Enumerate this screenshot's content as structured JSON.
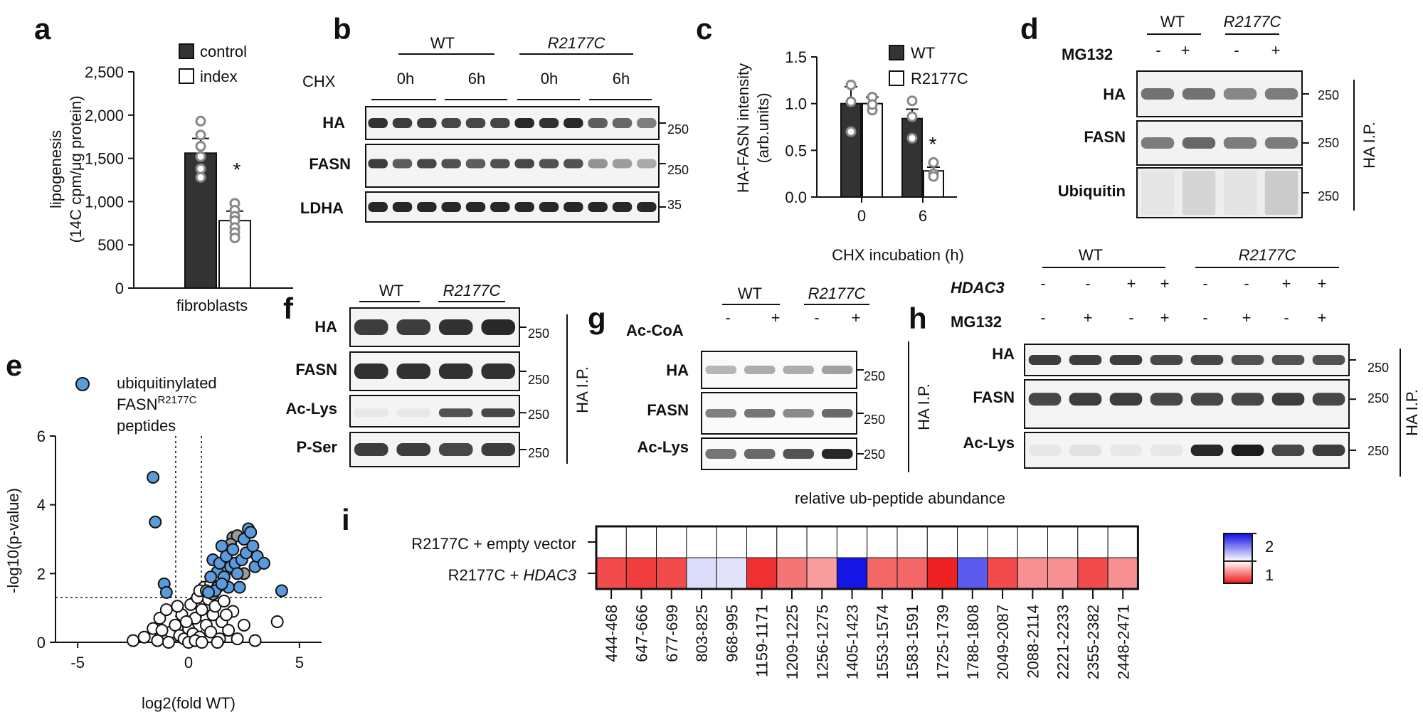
{
  "panels": {
    "a": {
      "letter": "a",
      "legend": [
        "control",
        "index"
      ],
      "ylabel_line1": "lipogenesis",
      "ylabel_line2": "(14C cpm/μg protein)",
      "yticks": [
        "2,500",
        "2,000",
        "1,500",
        "1,000",
        "500",
        "0"
      ],
      "xlabel": "fibroblasts",
      "star": "*"
    },
    "b": {
      "letter": "b",
      "groups": [
        "WT",
        "R2177C"
      ],
      "treatment": "CHX",
      "times": [
        "0h",
        "6h",
        "0h",
        "6h"
      ],
      "rows": [
        "HA",
        "FASN",
        "LDHA"
      ],
      "mw": [
        "250",
        "250",
        "35"
      ]
    },
    "c": {
      "letter": "c",
      "legend": [
        "WT",
        "R2177C"
      ],
      "ylabel_line1": "HA-FASN intensity",
      "ylabel_line2": "(arb.units)",
      "yticks": [
        "1.5",
        "1.0",
        "0.5",
        "0.0"
      ],
      "xticks": [
        "0",
        "6"
      ],
      "xlabel": "CHX incubation (h)",
      "star": "*"
    },
    "d": {
      "letter": "d",
      "groups": [
        "WT",
        "R2177C"
      ],
      "treatment": "MG132",
      "signs": [
        "-",
        "+",
        "-",
        "+"
      ],
      "rows": [
        "HA",
        "FASN",
        "Ubiquitin"
      ],
      "mw": [
        "250",
        "250",
        "250"
      ],
      "side": "HA I.P."
    },
    "e": {
      "letter": "e",
      "legend_line1": "ubiquitinylated",
      "legend_line2": "FASN",
      "legend_sup": "R2177C",
      "legend_line3": "peptides",
      "ylabel": "-log10(p-value)",
      "xlabel": "log2(fold  WT)",
      "yticks": [
        "6",
        "4",
        "2",
        "0"
      ],
      "xticks": [
        "-5",
        "0",
        "5"
      ]
    },
    "f": {
      "letter": "f",
      "groups": [
        "WT",
        "R2177C"
      ],
      "rows": [
        "HA",
        "FASN",
        "Ac-Lys",
        "P-Ser"
      ],
      "mw": [
        "250",
        "250",
        "250",
        "250"
      ],
      "side": "HA I.P."
    },
    "g": {
      "letter": "g",
      "groups": [
        "WT",
        "R2177C"
      ],
      "treatment": "Ac-CoA",
      "signs": [
        "-",
        "+",
        "-",
        "+"
      ],
      "rows": [
        "HA",
        "FASN",
        "Ac-Lys"
      ],
      "mw": [
        "250",
        "250",
        "250"
      ],
      "side": "HA I.P."
    },
    "h": {
      "letter": "h",
      "groups": [
        "WT",
        "R2177C"
      ],
      "treatments": [
        "HDAC3",
        "MG132"
      ],
      "signs_hdac3": [
        "-",
        "-",
        "+",
        "+",
        "-",
        "-",
        "+",
        "+"
      ],
      "signs_mg132": [
        "-",
        "+",
        "-",
        "+",
        "-",
        "+",
        "-",
        "+"
      ],
      "rows": [
        "HA",
        "FASN",
        "Ac-Lys"
      ],
      "mw": [
        "250",
        "250",
        "250"
      ],
      "side": "HA I.P."
    },
    "i": {
      "letter": "i",
      "title": "relative ub-peptide abundance",
      "rows": [
        "R2177C + empty vector",
        "R2177C + "
      ],
      "row2_italic": "HDAC3",
      "colorbar_ticks": [
        "2",
        "1"
      ]
    }
  },
  "chart_data": [
    {
      "panel": "a",
      "type": "bar",
      "categories": [
        "control",
        "index"
      ],
      "values": [
        1560,
        780
      ],
      "errors": [
        170,
        110
      ],
      "points": [
        [
          1930,
          1770,
          1640,
          1520,
          1380,
          1280
        ],
        [
          980,
          900,
          830,
          780,
          700,
          640,
          580
        ]
      ],
      "xlabel": "fibroblasts",
      "ylabel": "lipogenesis (14C cpm/μg protein)",
      "ylim": [
        0,
        2500
      ],
      "colors": [
        "#333333",
        "#ffffff"
      ]
    },
    {
      "panel": "c",
      "type": "bar",
      "categories": [
        "0",
        "6"
      ],
      "series": [
        {
          "name": "WT",
          "values": [
            1.0,
            0.84
          ],
          "errors": [
            0.18,
            0.1
          ],
          "points": [
            [
              1.2,
              1.02,
              0.7
            ],
            [
              1.03,
              0.63,
              0.86
            ]
          ]
        },
        {
          "name": "R2177C",
          "values": [
            1.0,
            0.28
          ],
          "errors": [
            0.07,
            0.04
          ],
          "points": [
            [
              1.07,
              0.93,
              0.99
            ],
            [
              0.37,
              0.25,
              0.22
            ]
          ]
        }
      ],
      "xlabel": "CHX incubation (h)",
      "ylabel": "HA-FASN intensity (arb.units)",
      "ylim": [
        0,
        1.5
      ],
      "colors": [
        "#333333",
        "#ffffff"
      ]
    },
    {
      "panel": "e",
      "type": "scatter",
      "xlabel": "log2(fold  WT)",
      "ylabel": "-log10(p-value)",
      "xlim": [
        -6,
        6
      ],
      "ylim": [
        0,
        6
      ],
      "thresholds": {
        "x": [
          -0.58,
          0.58
        ],
        "y": 1.3
      },
      "series": [
        {
          "name": "ubiquitinylated FASNR2177C peptides",
          "color": "#5b9bdc",
          "points": [
            [
              -1.6,
              4.8
            ],
            [
              -1.5,
              3.5
            ],
            [
              -1.1,
              1.7
            ],
            [
              -1.0,
              1.45
            ],
            [
              1.1,
              2.4
            ],
            [
              1.3,
              2.05
            ],
            [
              1.4,
              2.3
            ],
            [
              1.5,
              2.8
            ],
            [
              1.6,
              1.9
            ],
            [
              1.7,
              2.5
            ],
            [
              1.8,
              1.6
            ],
            [
              1.9,
              2.2
            ],
            [
              2.0,
              2.7
            ],
            [
              2.1,
              2.3
            ],
            [
              2.2,
              2.0
            ],
            [
              2.4,
              2.4
            ],
            [
              2.5,
              3.0
            ],
            [
              2.6,
              2.6
            ],
            [
              2.7,
              3.3
            ],
            [
              2.8,
              3.2
            ],
            [
              2.9,
              2.8
            ],
            [
              3.0,
              2.2
            ],
            [
              3.1,
              2.5
            ],
            [
              3.4,
              2.3
            ],
            [
              4.2,
              1.5
            ],
            [
              1.2,
              1.5
            ],
            [
              1.5,
              1.7
            ],
            [
              2.3,
              1.6
            ],
            [
              0.9,
              1.45
            ],
            [
              1.0,
              1.9
            ]
          ]
        },
        {
          "name": "",
          "color": "#9a9a9a",
          "points": [
            [
              2.0,
              3.05
            ],
            [
              2.2,
              3.1
            ],
            [
              1.9,
              2.85
            ],
            [
              1.3,
              1.6
            ],
            [
              1.7,
              2.1
            ],
            [
              2.5,
              2.0
            ],
            [
              0.8,
              1.5
            ],
            [
              1.1,
              1.4
            ]
          ]
        },
        {
          "name": "",
          "color": "#ffffff",
          "points": [
            [
              -2.5,
              0.05
            ],
            [
              -2.0,
              0.15
            ],
            [
              -1.6,
              0.4
            ],
            [
              -1.3,
              0.7
            ],
            [
              -1.0,
              0.95
            ],
            [
              -0.8,
              0.3
            ],
            [
              -0.6,
              0.5
            ],
            [
              -0.4,
              0.2
            ],
            [
              -0.3,
              0.8
            ],
            [
              -0.2,
              0.1
            ],
            [
              0.0,
              0.4
            ],
            [
              0.1,
              1.1
            ],
            [
              0.2,
              0.25
            ],
            [
              0.3,
              0.7
            ],
            [
              0.4,
              1.3
            ],
            [
              0.5,
              0.15
            ],
            [
              0.6,
              0.95
            ],
            [
              0.7,
              1.6
            ],
            [
              0.8,
              0.5
            ],
            [
              0.9,
              1.25
            ],
            [
              1.0,
              0.3
            ],
            [
              1.1,
              0.8
            ],
            [
              1.2,
              1.05
            ],
            [
              1.4,
              0.1
            ],
            [
              1.5,
              0.6
            ],
            [
              1.6,
              1.2
            ],
            [
              1.8,
              0.35
            ],
            [
              2.0,
              0.9
            ],
            [
              2.2,
              0.1
            ],
            [
              2.5,
              0.5
            ],
            [
              3.0,
              0.05
            ],
            [
              4.0,
              0.6
            ],
            [
              -1.4,
              0.05
            ],
            [
              -0.9,
              0.0
            ],
            [
              -0.5,
              1.05
            ],
            [
              0.0,
              0.0
            ],
            [
              0.3,
              0.05
            ],
            [
              0.6,
              0.0
            ],
            [
              1.3,
              0.0
            ],
            [
              -0.1,
              0.6
            ],
            [
              0.5,
              1.5
            ],
            [
              1.0,
              1.7
            ],
            [
              -1.2,
              0.35
            ],
            [
              1.7,
              0.8
            ]
          ]
        }
      ]
    },
    {
      "panel": "i",
      "type": "heatmap",
      "title": "relative ub-peptide abundance",
      "columns": [
        "444-468",
        "647-666",
        "677-699",
        "803-825",
        "968-995",
        "1159-1171",
        "1209-1225",
        "1256-1275",
        "1405-1423",
        "1553-1574",
        "1583-1591",
        "1725-1739",
        "1788-1808",
        "2049-2087",
        "2088-2114",
        "2221-2233",
        "2355-2382",
        "2448-2471"
      ],
      "rows": [
        "R2177C + empty vector",
        "R2177C + HDAC3"
      ],
      "values": [
        [
          1,
          1,
          1,
          1,
          1,
          1,
          1,
          1,
          1,
          1,
          1,
          1,
          1,
          1,
          1,
          1,
          1,
          1
        ],
        [
          0.35,
          0.3,
          0.35,
          1.15,
          1.12,
          0.25,
          0.5,
          0.65,
          2.0,
          0.45,
          0.45,
          0.2,
          1.7,
          0.35,
          0.6,
          0.6,
          0.35,
          0.6
        ]
      ],
      "colorbar": {
        "ticks": [
          2,
          1
        ],
        "low": "#ee2222",
        "mid": "#ffffff",
        "high": "#1515e6"
      }
    }
  ]
}
